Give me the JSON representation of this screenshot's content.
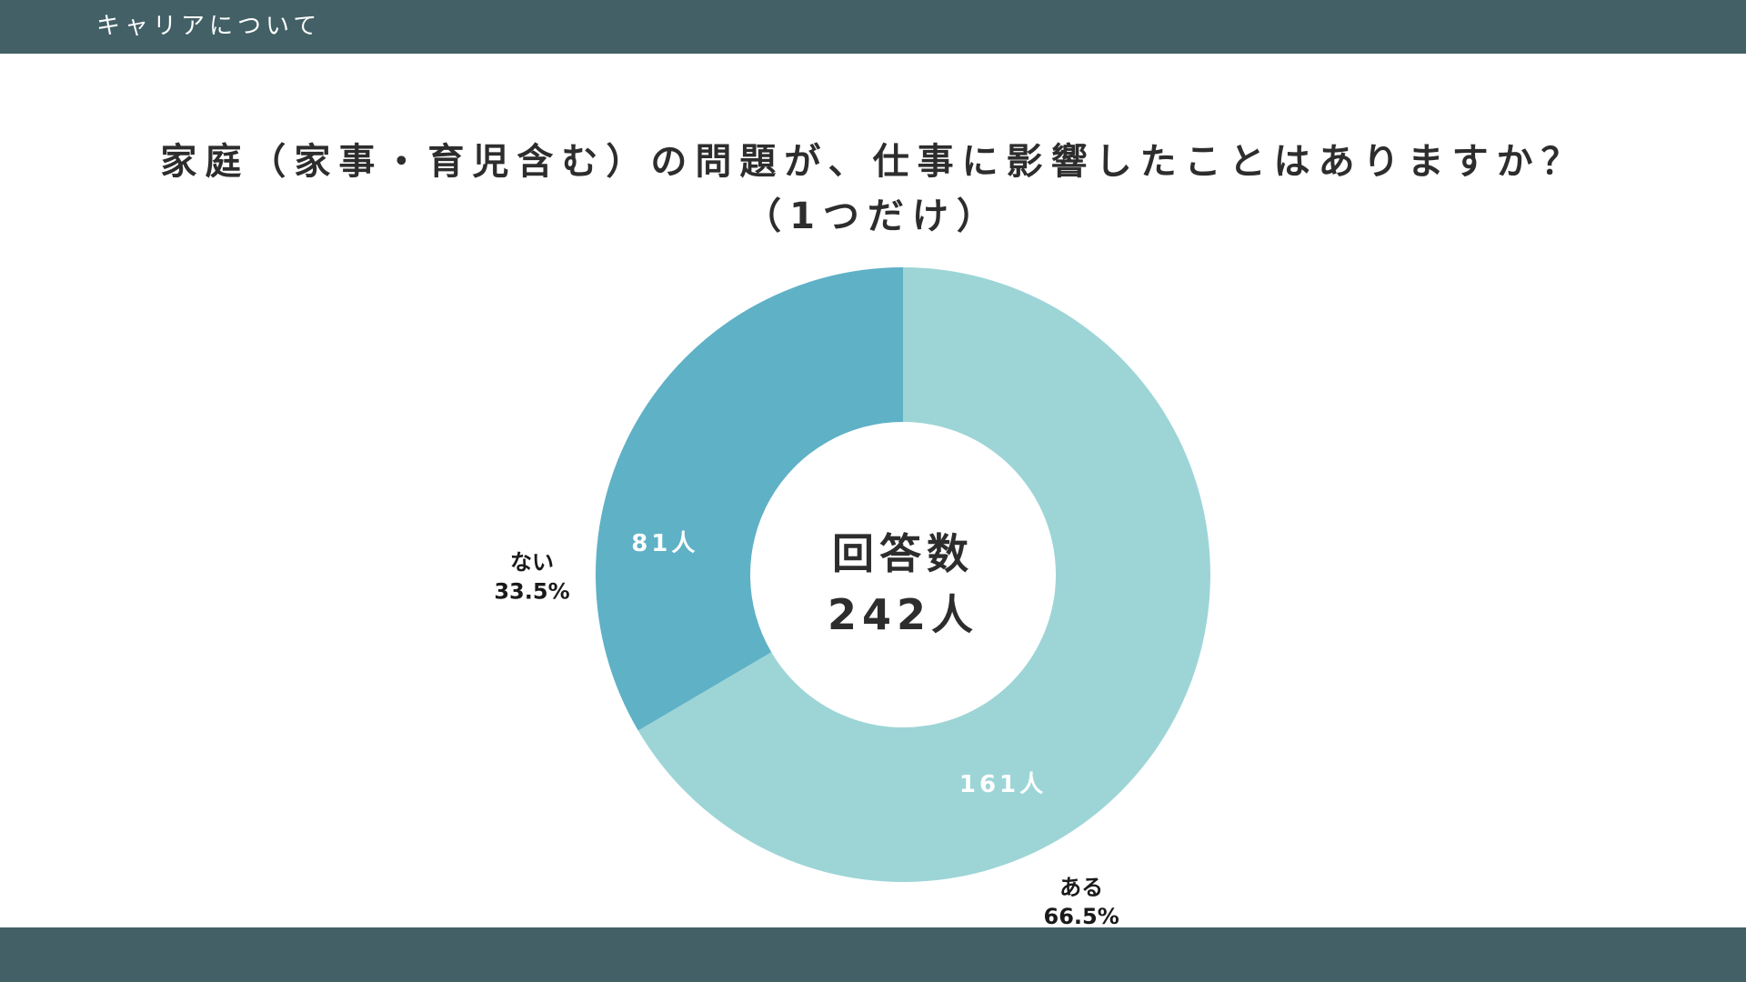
{
  "header": {
    "section_title": "キャリアについて"
  },
  "colors": {
    "bar": "#426066",
    "slice_yes": "#9dd5d7",
    "slice_no": "#5fb1c6",
    "title": "#2d2d2d",
    "center_text": "#2d2d2d",
    "outer_label": "#1a1a1a",
    "inner_label": "#ffffff"
  },
  "chart_data": {
    "type": "pie",
    "style": "donut",
    "title": "家庭（家事・育児含む）の問題が、仕事に影響したことはありますか？",
    "subtitle": "（1つだけ）",
    "center_label": {
      "line1": "回答数",
      "line2": "242人"
    },
    "total": 242,
    "slices": [
      {
        "label": "ある",
        "value": 161,
        "value_label": "161人",
        "percent_label": "66.5%",
        "color": "#9dd5d7"
      },
      {
        "label": "ない",
        "value": 81,
        "value_label": "81人",
        "percent_label": "33.5%",
        "color": "#5fb1c6"
      }
    ]
  }
}
